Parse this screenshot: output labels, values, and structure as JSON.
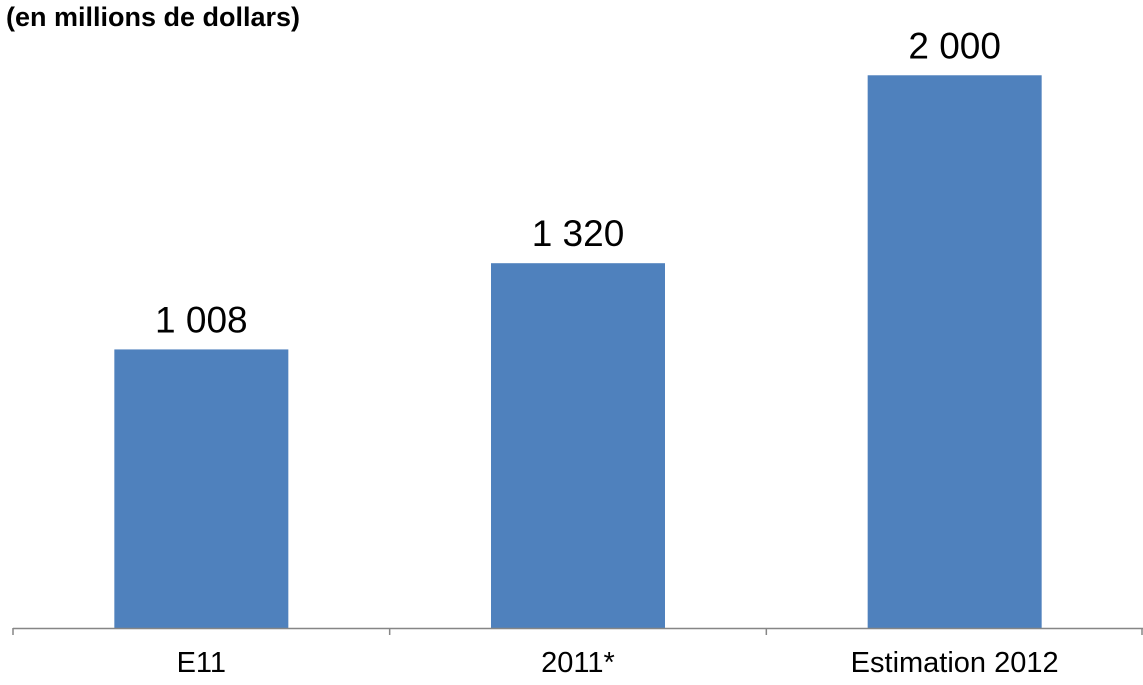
{
  "chart_data": {
    "type": "bar",
    "title": "(en millions de dollars)",
    "categories": [
      "E11",
      "2011*",
      "Estimation 2012"
    ],
    "values": [
      1008,
      1320,
      2000
    ],
    "data_labels": [
      "1 008",
      "1 320",
      "2 000"
    ],
    "xlabel": "",
    "ylabel": "",
    "ylim": [
      0,
      2200
    ],
    "grid": false,
    "legend": "none",
    "bar_color": "#4f81bd",
    "axis_color": "#868686"
  }
}
